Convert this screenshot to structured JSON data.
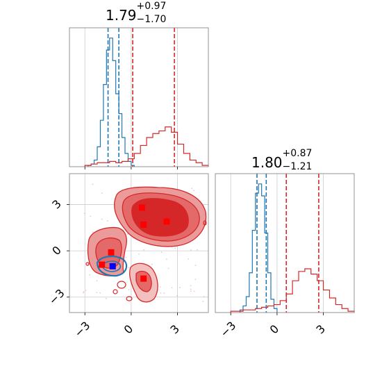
{
  "chart_data": [
    {
      "type": "histogram",
      "panel": "top-left marginal",
      "title": {
        "value": "1.79",
        "upper": "+0.97",
        "lower": "−1.70"
      },
      "xlim": [
        -4,
        5
      ],
      "x_ticks": [
        -3,
        0,
        3
      ],
      "grid": true,
      "series": [
        {
          "color": "#1f77b4",
          "bin_edges": [
            -2.8,
            -2.6,
            -2.4,
            -2.2,
            -2.0,
            -1.8,
            -1.6,
            -1.4,
            -1.2,
            -1.0,
            -0.8,
            -0.6,
            -0.4,
            -0.2,
            0.0,
            0.2
          ],
          "counts": [
            0.01,
            0.02,
            0.05,
            0.15,
            0.35,
            0.62,
            0.88,
            0.97,
            0.8,
            0.55,
            0.4,
            0.22,
            0.1,
            0.04,
            0.01
          ],
          "quantile_lines": [
            -1.5,
            -0.8
          ]
        },
        {
          "color": "#d62728",
          "bin_edges": [
            -3.0,
            -2.6,
            -2.2,
            -1.8,
            -1.4,
            -1.0,
            -0.6,
            -0.2,
            0.2,
            0.6,
            1.0,
            1.4,
            1.8,
            2.2,
            2.6,
            3.0,
            3.4,
            3.8,
            4.2,
            4.6,
            5.0
          ],
          "counts": [
            0.01,
            0.02,
            0.03,
            0.03,
            0.04,
            0.03,
            0.04,
            0.06,
            0.1,
            0.16,
            0.22,
            0.25,
            0.27,
            0.3,
            0.26,
            0.17,
            0.1,
            0.05,
            0.03,
            0.01
          ],
          "quantile_lines": [
            0.1,
            2.8
          ]
        }
      ]
    },
    {
      "type": "contour",
      "panel": "bottom-left 2D",
      "xlim": [
        -4,
        5
      ],
      "ylim": [
        -4,
        5
      ],
      "x_ticks": [
        -3,
        0,
        3
      ],
      "y_ticks": [
        -3,
        0,
        3
      ],
      "grid": true,
      "red_markers": [
        {
          "x": 0.7,
          "y": 2.8
        },
        {
          "x": 0.8,
          "y": 1.7
        },
        {
          "x": 2.3,
          "y": 1.9
        },
        {
          "x": -1.3,
          "y": -0.1
        },
        {
          "x": -1.9,
          "y": -0.9
        },
        {
          "x": 0.8,
          "y": -1.8
        }
      ],
      "blue_marker": {
        "x": -1.2,
        "y": -1.0
      }
    },
    {
      "type": "histogram",
      "panel": "bottom-right marginal",
      "title": {
        "value": "1.80",
        "upper": "+0.87",
        "lower": "−1.21"
      },
      "xlim": [
        -4,
        5
      ],
      "x_ticks": [
        -3,
        0,
        3
      ],
      "grid": true,
      "series": [
        {
          "color": "#1f77b4",
          "bin_edges": [
            -2.4,
            -2.2,
            -2.0,
            -1.8,
            -1.6,
            -1.4,
            -1.2,
            -1.0,
            -0.8,
            -0.6,
            -0.4,
            -0.2,
            0.0
          ],
          "counts": [
            0.02,
            0.05,
            0.12,
            0.3,
            0.62,
            0.9,
            0.97,
            0.88,
            0.6,
            0.3,
            0.1,
            0.03
          ],
          "quantile_lines": [
            -1.3,
            -0.7
          ]
        },
        {
          "color": "#d62728",
          "bin_edges": [
            -3.0,
            -2.6,
            -2.2,
            -1.8,
            -1.4,
            -1.0,
            -0.6,
            -0.2,
            0.2,
            0.6,
            1.0,
            1.4,
            1.8,
            2.2,
            2.6,
            3.0,
            3.4,
            3.8,
            4.2,
            4.6,
            5.0
          ],
          "counts": [
            0.01,
            0.01,
            0.02,
            0.02,
            0.03,
            0.04,
            0.05,
            0.06,
            0.09,
            0.14,
            0.24,
            0.31,
            0.33,
            0.29,
            0.24,
            0.17,
            0.11,
            0.06,
            0.03,
            0.01
          ],
          "quantile_lines": [
            0.6,
            2.7
          ]
        }
      ]
    }
  ]
}
